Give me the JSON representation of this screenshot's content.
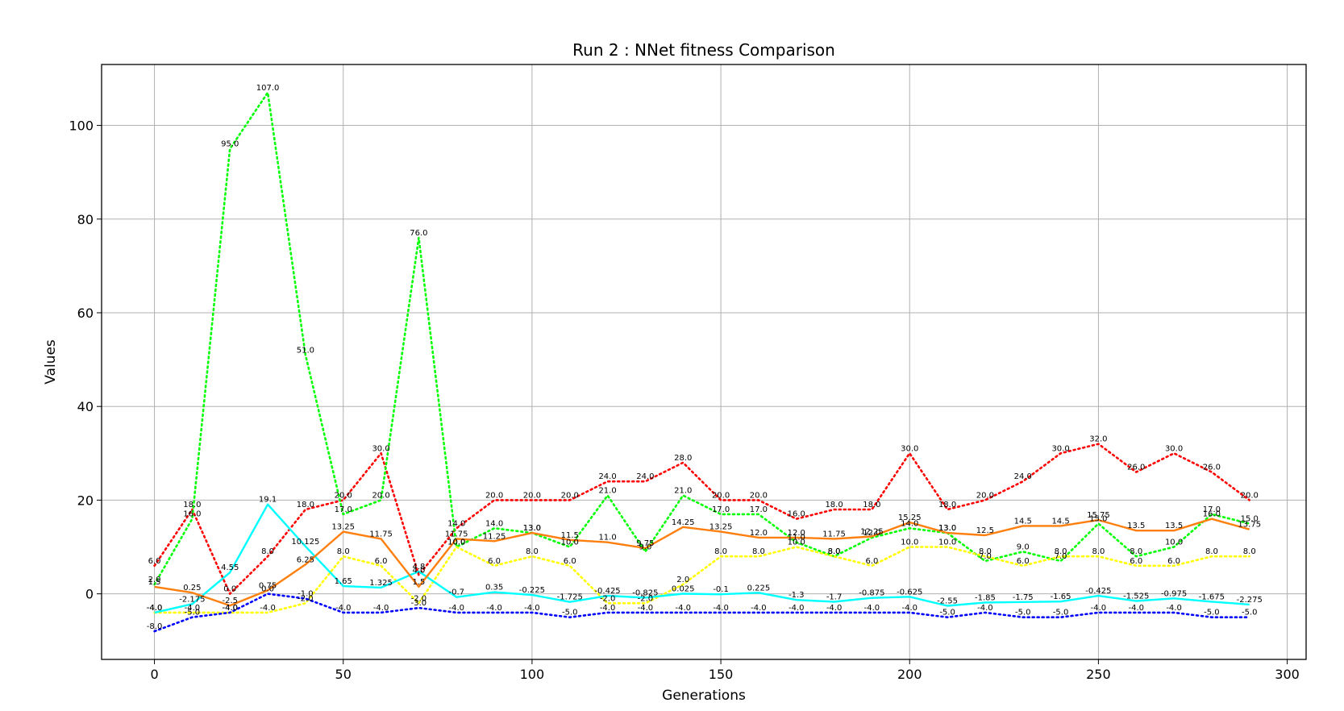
{
  "chart_data": {
    "type": "line",
    "title": "Run 2 : NNet fitness Comparison",
    "xlabel": "Generations",
    "ylabel": "Values",
    "xlim": [
      -14,
      305
    ],
    "ylim": [
      -14,
      113
    ],
    "xticks": [
      0,
      50,
      100,
      150,
      200,
      250,
      300
    ],
    "yticks": [
      0,
      20,
      40,
      60,
      80,
      100
    ],
    "grid": true,
    "x": [
      0,
      10,
      20,
      30,
      40,
      50,
      60,
      70,
      80,
      90,
      100,
      110,
      120,
      130,
      140,
      150,
      160,
      170,
      180,
      190,
      200,
      210,
      220,
      230,
      240,
      250,
      260,
      270,
      280,
      290
    ],
    "series": [
      {
        "color": "#ff0000",
        "style": "dotted",
        "values": [
          6.0,
          18.0,
          0.0,
          8.0,
          18.0,
          20.0,
          30.0,
          4.0,
          14.0,
          20.0,
          20.0,
          20.0,
          24.0,
          24.0,
          28.0,
          20.0,
          20.0,
          16.0,
          18.0,
          18.0,
          30.0,
          18.0,
          20.0,
          24.0,
          30.0,
          32.0,
          26.0,
          30.0,
          26.0,
          20.0
        ],
        "labels": [
          "6.0",
          "18.0",
          "0.0",
          "8.0",
          "18.0",
          "20.0",
          "30.0",
          "4.0",
          "14.0",
          "20.0",
          "20.0",
          "20.0",
          "24.0",
          "24.0",
          "28.0",
          "20.0",
          "20.0",
          "16.0",
          "18.0",
          "18.0",
          "30.0",
          "18.0",
          "20.0",
          "24.0",
          "30.0",
          "32.0",
          "26.0",
          "30.0",
          "26.0",
          "20.0"
        ]
      },
      {
        "color": "#00ff00",
        "style": "dotted",
        "values": [
          2.0,
          16.0,
          95.0,
          107.0,
          51.0,
          17.0,
          20.0,
          76.0,
          10.0,
          14.0,
          13.0,
          10.0,
          21.0,
          9.0,
          21.0,
          17.0,
          17.0,
          11.0,
          8.0,
          12.0,
          14.0,
          13.0,
          7.0,
          9.0,
          7.0,
          15.0,
          8.0,
          10.0,
          17.0,
          15.0
        ],
        "labels": [
          "2.0",
          "16.0",
          "95.0",
          "107.0",
          "51.0",
          "17.0",
          "20.0",
          "76.0",
          "10.0",
          "14.0",
          "13.0",
          "10.0",
          "21.0",
          "9.0",
          "21.0",
          "17.0",
          "17.0",
          "11.0",
          "8.0",
          "12.0",
          "14.0",
          "13.0",
          "7.0",
          "9.0",
          "7.0",
          "15.0",
          "8.0",
          "10.0",
          "17.0",
          "15.0"
        ]
      },
      {
        "color": "#ffff00",
        "style": "dotted",
        "values": [
          -4.0,
          -4.0,
          -4.0,
          -4.0,
          -2.0,
          8.0,
          6.0,
          -2.0,
          10.0,
          6.0,
          8.0,
          6.0,
          -2.0,
          -2.0,
          2.0,
          8.0,
          8.0,
          10.0,
          8.0,
          6.0,
          10.0,
          10.0,
          8.0,
          6.0,
          8.0,
          8.0,
          6.0,
          6.0,
          8.0,
          8.0
        ],
        "labels": [
          "-4.0",
          "-4.0",
          "-4.0",
          "-4.0",
          "-2.0",
          "8.0",
          "6.0",
          "-2.0",
          "10.0",
          "6.0",
          "8.0",
          "6.0",
          "-2.0",
          "-2.0",
          "2.0",
          "8.0",
          "8.0",
          "10.0",
          "8.0",
          "6.0",
          "10.0",
          "10.0",
          "8.0",
          "6.0",
          "8.0",
          "8.0",
          "6.0",
          "6.0",
          "8.0",
          "8.0"
        ]
      },
      {
        "color": "#0000ff",
        "style": "dotted",
        "values": [
          -8.0,
          -5.0,
          -4.0,
          0.0,
          -1.0,
          -4.0,
          -4.0,
          -3.0,
          -4.0,
          -4.0,
          -4.0,
          -5.0,
          -4.0,
          -4.0,
          -4.0,
          -4.0,
          -4.0,
          -4.0,
          -4.0,
          -4.0,
          -4.0,
          -5.0,
          -4.0,
          -5.0,
          -5.0,
          -4.0,
          -4.0,
          -4.0,
          -5.0,
          -5.0
        ],
        "labels": [
          "-8.0",
          "-5.0",
          "-4.0",
          "0.0",
          "-1.0",
          "-4.0",
          "-4.0",
          "-3.0",
          "-4.0",
          "-4.0",
          "-4.0",
          "-5.0",
          "-4.0",
          "-4.0",
          "-4.0",
          "-4.0",
          "-4.0",
          "-4.0",
          "-4.0",
          "-4.0",
          "-4.0",
          "-5.0",
          "-4.0",
          "-5.0",
          "-5.0",
          "-4.0",
          "-4.0",
          "-4.0",
          "-5.0",
          "-5.0"
        ]
      },
      {
        "color": "#00ffff",
        "style": "solid",
        "values": [
          -4.0,
          -2.175,
          4.55,
          19.1,
          10.125,
          1.65,
          1.325,
          4.8,
          -0.7,
          0.35,
          -0.225,
          -1.725,
          -0.425,
          -0.825,
          0.025,
          -0.1,
          0.225,
          -1.3,
          -1.7,
          -0.875,
          -0.625,
          -2.55,
          -1.85,
          -1.75,
          -1.65,
          -0.425,
          -1.525,
          -0.975,
          -1.675,
          -2.275
        ],
        "labels": [
          "-4.0",
          "-2.175",
          "4.55",
          "19.1",
          "10.125",
          "1.65",
          "1.325",
          "4.8",
          "-0.7",
          "0.35",
          "-0.225",
          "-1.725",
          "-0.425",
          "-0.825",
          "0.025",
          "-0.1",
          "0.225",
          "-1.3",
          "-1.7",
          "-0.875",
          "-0.625",
          "-2.55",
          "-1.85",
          "-1.75",
          "-1.65",
          "-0.425",
          "-1.525",
          "-0.975",
          "-1.675",
          "-2.275"
        ]
      },
      {
        "color": "#ff7f0e",
        "style": "solid",
        "values": [
          1.5,
          0.25,
          -2.5,
          0.75,
          6.25,
          13.25,
          11.75,
          1.5,
          11.75,
          11.25,
          13.0,
          11.5,
          11.0,
          9.75,
          14.25,
          13.25,
          12.0,
          12.0,
          11.75,
          12.25,
          15.25,
          13.0,
          12.5,
          14.5,
          14.5,
          15.75,
          13.5,
          13.5,
          16.0,
          13.75
        ],
        "labels": [
          "1.5",
          "0.25",
          "-2.5",
          "0.75",
          "6.25",
          "13.25",
          "11.75",
          "1.5",
          "11.75",
          "11.25",
          "13.0",
          "11.5",
          "11.0",
          "9.75",
          "14.25",
          "13.25",
          "12.0",
          "12.0",
          "11.75",
          "12.25",
          "15.25",
          "13.0",
          "12.5",
          "14.5",
          "14.5",
          "15.75",
          "13.5",
          "13.5",
          "16.0",
          "13.75"
        ]
      }
    ]
  }
}
